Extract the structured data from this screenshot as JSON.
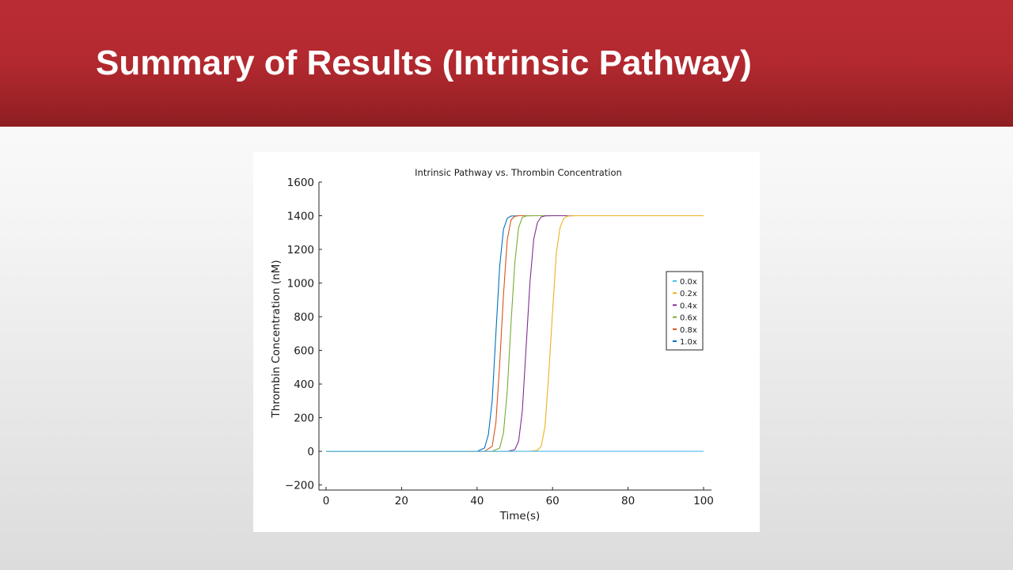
{
  "slide": {
    "title": "Summary of Results (Intrinsic Pathway)"
  },
  "colors": {
    "header_top": "#bb2c34",
    "header_bottom": "#8e1e22"
  },
  "chart_data": {
    "type": "line",
    "title": "Intrinsic Pathway vs. Thrombin Concentration",
    "xlabel": "Time(s)",
    "ylabel": "Thrombin Concentration (nM)",
    "xlim": [
      0,
      100
    ],
    "ylim": [
      -230,
      1600
    ],
    "x_ticks": [
      0,
      20,
      40,
      60,
      80,
      100
    ],
    "y_ticks": [
      -200,
      0,
      200,
      400,
      600,
      800,
      1000,
      1200,
      1400,
      1600
    ],
    "x_tick_labels": [
      "0",
      "20",
      "40",
      "60",
      "80",
      "100"
    ],
    "y_tick_labels": [
      "−200",
      "0",
      "200",
      "400",
      "600",
      "800",
      "1000",
      "1200",
      "1400",
      "1600"
    ],
    "grid": false,
    "legend_position": "right",
    "series": [
      {
        "name": "0.0x",
        "color": "#4dbeee",
        "x": [
          0,
          100
        ],
        "y": [
          0,
          0
        ]
      },
      {
        "name": "0.2x",
        "color": "#edb120",
        "x": [
          0,
          54,
          56,
          57,
          58,
          59,
          60,
          61,
          62,
          63,
          64,
          66,
          100
        ],
        "y": [
          0,
          0,
          6,
          30,
          150,
          460,
          830,
          1180,
          1330,
          1385,
          1398,
          1400,
          1400
        ]
      },
      {
        "name": "0.4x",
        "color": "#7e2f8e",
        "x": [
          0,
          48,
          50,
          51,
          52,
          53,
          54,
          55,
          56,
          57,
          58,
          60,
          100
        ],
        "y": [
          0,
          0,
          10,
          60,
          240,
          620,
          1000,
          1260,
          1360,
          1393,
          1399,
          1400,
          1400
        ]
      },
      {
        "name": "0.6x",
        "color": "#77ac30",
        "x": [
          0,
          44,
          46,
          47,
          48,
          49,
          50,
          51,
          52,
          53,
          55,
          100
        ],
        "y": [
          0,
          0,
          20,
          110,
          360,
          760,
          1120,
          1330,
          1390,
          1399,
          1400,
          1400
        ]
      },
      {
        "name": "0.8x",
        "color": "#d95319",
        "x": [
          0,
          42,
          44,
          45,
          46,
          47,
          48,
          49,
          50,
          51,
          53,
          100
        ],
        "y": [
          0,
          0,
          30,
          170,
          520,
          930,
          1260,
          1375,
          1397,
          1400,
          1400,
          1400
        ]
      },
      {
        "name": "1.0x",
        "color": "#0072bd",
        "x": [
          0,
          40,
          42,
          43,
          44,
          45,
          46,
          47,
          48,
          49,
          51,
          100
        ],
        "y": [
          0,
          0,
          20,
          100,
          300,
          700,
          1100,
          1320,
          1385,
          1398,
          1400,
          1400
        ]
      }
    ]
  }
}
